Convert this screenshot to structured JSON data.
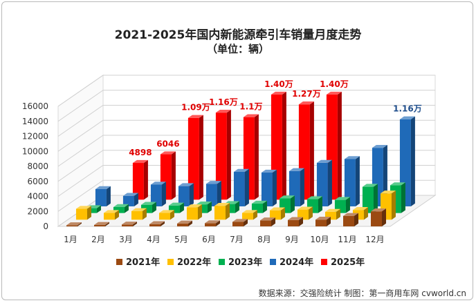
{
  "chart_data": {
    "type": "bar",
    "title": "2021-2025年国内新能源牵引车销量月度走势",
    "subtitle": "（单位：辆）",
    "categories": [
      "1月",
      "2月",
      "3月",
      "4月",
      "5月",
      "6月",
      "7月",
      "8月",
      "9月",
      "10月",
      "11月",
      "12月"
    ],
    "y_ticks": [
      "0",
      "2000",
      "4000",
      "6000",
      "8000",
      "10000",
      "12000",
      "14000",
      "16000"
    ],
    "ylim": [
      0,
      16000
    ],
    "grid": true,
    "legend_position": "bottom",
    "series": [
      {
        "name": "2021年",
        "color": "#9b4a12",
        "values": [
          150,
          200,
          250,
          300,
          380,
          420,
          600,
          800,
          850,
          900,
          1400,
          2000
        ]
      },
      {
        "name": "2022年",
        "color": "#ffc000",
        "values": [
          1450,
          900,
          1150,
          900,
          1650,
          1850,
          900,
          1250,
          1350,
          1050,
          1300,
          3500
        ]
      },
      {
        "name": "2023年",
        "color": "#00b050",
        "values": [
          650,
          800,
          1100,
          1000,
          1150,
          1200,
          1250,
          1950,
          1850,
          1750,
          3500,
          3700
        ]
      },
      {
        "name": "2024年",
        "color": "#1f6ab8",
        "values": [
          2300,
          1400,
          2900,
          2700,
          3000,
          4600,
          4500,
          4700,
          5800,
          6300,
          7800,
          11600
        ]
      },
      {
        "name": "2025年",
        "color": "#ff0000",
        "values": [
          null,
          4898,
          6046,
          10900,
          11600,
          11000,
          14000,
          12700,
          14000,
          null,
          null,
          null
        ]
      }
    ],
    "data_labels": [
      {
        "series": "2025年",
        "index": 1,
        "text": "4898",
        "color": "#e00000"
      },
      {
        "series": "2025年",
        "index": 2,
        "text": "6046",
        "color": "#e00000"
      },
      {
        "series": "2025年",
        "index": 3,
        "text": "1.09万",
        "color": "#e00000"
      },
      {
        "series": "2025年",
        "index": 4,
        "text": "1.16万",
        "color": "#e00000"
      },
      {
        "series": "2025年",
        "index": 5,
        "text": "1.1万",
        "color": "#e00000"
      },
      {
        "series": "2025年",
        "index": 6,
        "text": "1.40万",
        "color": "#e00000"
      },
      {
        "series": "2025年",
        "index": 7,
        "text": "1.27万",
        "color": "#e00000"
      },
      {
        "series": "2025年",
        "index": 8,
        "text": "1.40万",
        "color": "#e00000"
      },
      {
        "series": "2024年",
        "index": 11,
        "text": "1.16万",
        "color": "#1f4e8c"
      }
    ]
  },
  "source": "数据来源：交强险统计  制图：第一商用车网 cvworld.cn"
}
